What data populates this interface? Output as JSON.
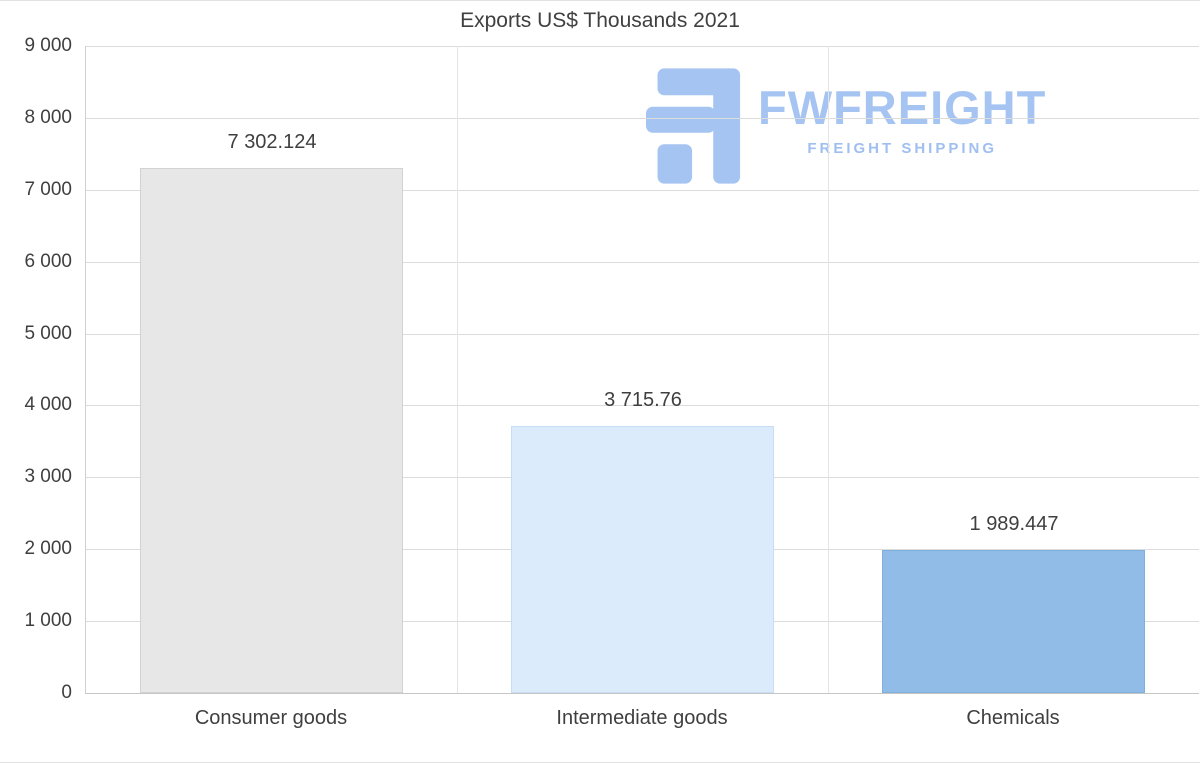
{
  "chart_data": {
    "type": "bar",
    "title": "Exports US$ Thousands 2021",
    "categories": [
      "Consumer goods",
      "Intermediate goods",
      "Chemicals"
    ],
    "values": [
      7302.124,
      3715.76,
      1989.447
    ],
    "value_labels": [
      "7 302.124",
      "3 715.76",
      "1 989.447"
    ],
    "bar_fill_colors": [
      "#e7e7e7",
      "#dcebfc",
      "#90bce7"
    ],
    "bar_border_colors": [
      "#d2d2d2",
      "#c7ddf6",
      "#7fafdd"
    ],
    "ylim": [
      0,
      9000
    ],
    "ytick_step": 1000,
    "ytick_labels": [
      "9 000",
      "8 000",
      "7 000",
      "6 000",
      "5 000",
      "4 000",
      "3 000",
      "2 000",
      "1 000",
      "0"
    ],
    "grid": "horizontal and column separators",
    "legend": "none",
    "xlabel": "",
    "ylabel": ""
  },
  "watermark": {
    "brand": "FWFREIGHT",
    "tagline": "FREIGHT SHIPPING",
    "color": "#a6c4f2"
  }
}
